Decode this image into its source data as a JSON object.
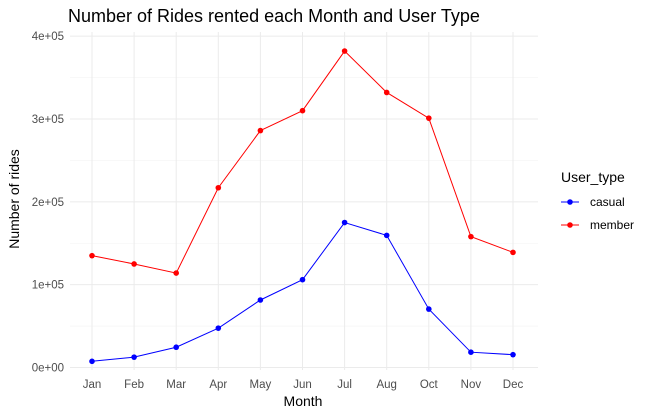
{
  "chart_data": {
    "type": "line",
    "title": "Number of Rides rented each Month and User Type",
    "xlabel": "Month",
    "ylabel": "Number of rides",
    "categories": [
      "Jan",
      "Feb",
      "Mar",
      "Apr",
      "May",
      "Jun",
      "Jul",
      "Aug",
      "Oct",
      "Nov",
      "Dec"
    ],
    "yticks": [
      0,
      100000,
      200000,
      300000,
      400000
    ],
    "ytick_labels": [
      "0e+00",
      "1e+05",
      "2e+05",
      "3e+05",
      "4e+05"
    ],
    "ylim": [
      -3000,
      405000
    ],
    "grid": true,
    "legend": {
      "title": "User_type",
      "position": "right"
    },
    "series": [
      {
        "name": "casual",
        "color": "#0000ff",
        "values": [
          7500,
          12500,
          24500,
          47500,
          81500,
          106000,
          175000,
          159500,
          70500,
          18500,
          15500
        ]
      },
      {
        "name": "member",
        "color": "#ff0000",
        "values": [
          135000,
          125000,
          114000,
          217000,
          286000,
          310000,
          382000,
          332000,
          301000,
          158000,
          139000
        ]
      }
    ]
  }
}
